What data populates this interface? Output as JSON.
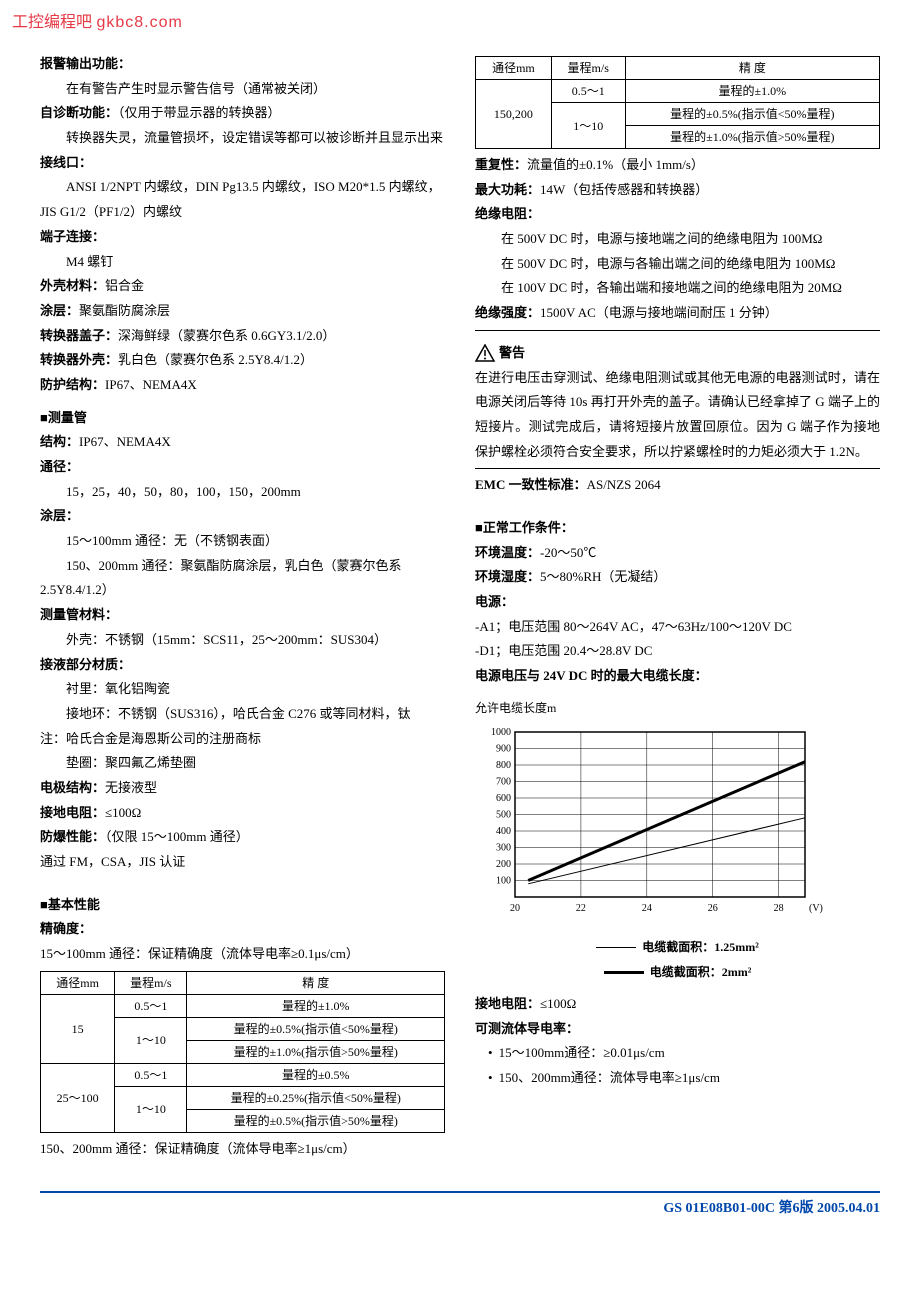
{
  "watermark": {
    "text": "工控编程吧",
    "domain": "gkbc8.com"
  },
  "left": {
    "alarm": {
      "label": "报警输出功能：",
      "line1": "在有警告产生时显示警告信号（通常被关闭）"
    },
    "selfdiag": {
      "label": "自诊断功能：",
      "note": "（仅用于带显示器的转换器）",
      "line1": "转换器失灵，流量管损坏，设定错误等都可以被诊断并且显示出来"
    },
    "wiring": {
      "label": "接线口：",
      "line1": "ANSI 1/2NPT 内螺纹，DIN Pg13.5 内螺纹，ISO M20*1.5 内螺纹，JIS G1/2（PF1/2）内螺纹"
    },
    "terminal": {
      "label": "端子连接：",
      "line1": "M4 螺钉"
    },
    "shell": {
      "label": "外壳材料：",
      "val": "铝合金"
    },
    "coating": {
      "label": "涂层：",
      "val": "聚氨酯防腐涂层"
    },
    "cover": {
      "label": "转换器盖子：",
      "val": "深海鲜绿（蒙赛尔色系 0.6GY3.1/2.0）"
    },
    "shell2": {
      "label": "转换器外壳：",
      "val": "乳白色（蒙赛尔色系 2.5Y8.4/1.2）"
    },
    "protect": {
      "label": "防护结构：",
      "val": "IP67、NEMA4X"
    },
    "tube_head": "测量管",
    "tube_struct": {
      "label": "结构：",
      "val": "IP67、NEMA4X"
    },
    "diameter": {
      "label": "通径：",
      "val": "15，25，40，50，80，100，150，200mm"
    },
    "tube_coating": {
      "label": "涂层：",
      "line1": "15～100mm 通径：无（不锈钢表面）",
      "line2": "150、200mm 通径：聚氨酯防腐涂层，乳白色（蒙赛尔色系 2.5Y8.4/1.2）"
    },
    "tube_mat": {
      "label": "测量管材料：",
      "line1": "外壳：不锈钢（15mm：SCS11，25～200mm：SUS304）"
    },
    "wetted": {
      "label": "接液部分材质：",
      "line1": "衬里：氧化铝陶瓷",
      "line2": "接地环：不锈钢（SUS316），哈氏合金 C276 或等同材料，钛"
    },
    "note1": "注：哈氏合金是海恩斯公司的注册商标",
    "gasket": "垫圈：聚四氟乙烯垫圈",
    "electrode": {
      "label": "电极结构：",
      "val": "无接液型"
    },
    "ground": {
      "label": "接地电阻：",
      "val": "≤100Ω"
    },
    "explosion": {
      "label": "防爆性能：",
      "val": "（仅限 15～100mm 通径）"
    },
    "cert": "通过 FM，CSA，JIS 认证",
    "basic_head": "基本性能",
    "accuracy": {
      "label": "精确度：",
      "line1": "15～100mm 通径：保证精确度（流体导电率≥0.1μs/cm）"
    },
    "table1": {
      "headers": [
        "通径mm",
        "量程m/s",
        "精 度"
      ],
      "rows": [
        {
          "dia": "15",
          "range1": "0.5～1",
          "acc1": "量程的±1.0%",
          "range2": "1～10",
          "acc2a": "量程的±0.5%(指示值<50%量程)",
          "acc2b": "量程的±1.0%(指示值>50%量程)"
        },
        {
          "dia": "25～100",
          "range1": "0.5～1",
          "acc1": "量程的±0.5%",
          "range2": "1～10",
          "acc2a": "量程的±0.25%(指示值<50%量程)",
          "acc2b": "量程的±0.5%(指示值>50%量程)"
        }
      ]
    },
    "accuracy2": "150、200mm 通径：保证精确度（流体导电率≥1μs/cm）"
  },
  "right": {
    "table2": {
      "headers": [
        "通径mm",
        "量程m/s",
        "精 度"
      ],
      "row": {
        "dia": "150,200",
        "range1": "0.5～1",
        "acc1": "量程的±1.0%",
        "range2": "1～10",
        "acc2a": "量程的±0.5%(指示值<50%量程)",
        "acc2b": "量程的±1.0%(指示值>50%量程)"
      }
    },
    "repeat": {
      "label": "重复性：",
      "val": "流量值的±0.1%（最小 1mm/s）"
    },
    "power": {
      "label": "最大功耗：",
      "val": "14W（包括传感器和转换器）"
    },
    "insul": {
      "label": "绝缘电阻：",
      "line1": "在 500V DC 时，电源与接地端之间的绝缘电阻为 100MΩ",
      "line2": "在 500V DC 时，电源与各输出端之间的绝缘电阻为 100MΩ",
      "line3": "在 100V DC 时，各输出端和接地端之间的绝缘电阻为 20MΩ"
    },
    "dielectric": {
      "label": "绝缘强度：",
      "val": "1500V AC（电源与接地端间耐压 1 分钟）"
    },
    "warn_label": "警告",
    "warn_text": "在进行电压击穿测试、绝缘电阻测试或其他无电源的电器测试时，请在电源关闭后等待 10s 再打开外壳的盖子。请确认已经拿掉了 G 端子上的短接片。测试完成后，请将短接片放置回原位。因为 G 端子作为接地保护螺栓必须符合安全要求，所以拧紧螺栓时的力矩必须大于 1.2N。",
    "emc": {
      "label": "EMC 一致性标准：",
      "val": "AS/NZS 2064"
    },
    "normal_head": "正常工作条件：",
    "temp": {
      "label": "环境温度：",
      "val": "-20～50℃"
    },
    "humid": {
      "label": "环境湿度：",
      "val": "5～80%RH（无凝结）"
    },
    "power_head": "电源：",
    "power_a1": "-A1；电压范围 80～264V AC，47～63Hz/100～120V DC",
    "power_d1": "-D1；电压范围 20.4～28.8V DC",
    "cable_head": "电源电压与 24V DC 时的最大电缆长度：",
    "chart": {
      "ylabel": "允许电缆长度m",
      "y_ticks": [
        100,
        200,
        300,
        400,
        500,
        600,
        700,
        800,
        900,
        1000
      ],
      "x_ticks": [
        20,
        22,
        24,
        26,
        28
      ],
      "x_unit": "(V)",
      "series1": {
        "label": "电缆截面积：1.25mm²",
        "points": [
          [
            20.4,
            80
          ],
          [
            28.8,
            480
          ]
        ],
        "width": 1
      },
      "series2": {
        "label": "电缆截面积：2mm²",
        "points": [
          [
            20.4,
            100
          ],
          [
            28.8,
            820
          ]
        ],
        "width": 3
      },
      "bg": "#ffffff",
      "grid": "#000000",
      "axis": "#000000"
    },
    "ground2": {
      "label": "接地电阻：",
      "val": "≤100Ω"
    },
    "cond": {
      "label": "可测流体导电率：",
      "b1": "15～100mm通径：≥0.01μs/cm",
      "b2": "150、200mm通径：流体导电率≥1μs/cm"
    }
  },
  "footer": "GS 01E08B01-00C  第6版  2005.04.01"
}
